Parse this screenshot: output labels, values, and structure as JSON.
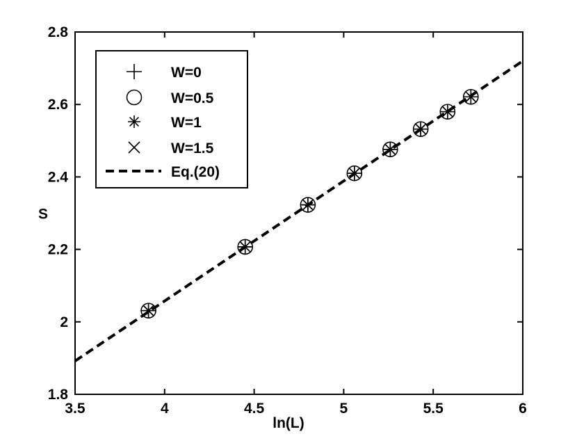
{
  "chart_data": {
    "type": "scatter",
    "title": "",
    "xlabel": "ln(L)",
    "ylabel": "S",
    "xlim": [
      3.5,
      6
    ],
    "ylim": [
      1.8,
      2.8
    ],
    "xticks": [
      "3.5",
      "4",
      "4.5",
      "5",
      "5.5",
      "6"
    ],
    "yticks": [
      "1.8",
      "2",
      "2.2",
      "2.4",
      "2.6",
      "2.8"
    ],
    "grid": false,
    "legend_position": "top-left",
    "series": [
      {
        "name": "W=0",
        "marker": "plus",
        "x": [
          3.91,
          4.45,
          4.8,
          5.06,
          5.26,
          5.43,
          5.58,
          5.71
        ],
        "y": [
          2.031,
          2.207,
          2.323,
          2.41,
          2.476,
          2.532,
          2.58,
          2.621
        ]
      },
      {
        "name": "W=0.5",
        "marker": "circle",
        "x": [
          3.91,
          4.45,
          4.8,
          5.06,
          5.26,
          5.43,
          5.58,
          5.71
        ],
        "y": [
          2.031,
          2.207,
          2.323,
          2.41,
          2.476,
          2.532,
          2.58,
          2.621
        ]
      },
      {
        "name": "W=1",
        "marker": "asterisk",
        "x": [
          3.91,
          4.45,
          4.8,
          5.06,
          5.26,
          5.43,
          5.58,
          5.71
        ],
        "y": [
          2.031,
          2.207,
          2.323,
          2.41,
          2.476,
          2.532,
          2.58,
          2.621
        ]
      },
      {
        "name": "W=1.5",
        "marker": "cross",
        "x": [
          3.91,
          4.45,
          4.8,
          5.06,
          5.26,
          5.43,
          5.58,
          5.71
        ],
        "y": [
          2.031,
          2.207,
          2.323,
          2.41,
          2.476,
          2.532,
          2.58,
          2.621
        ]
      },
      {
        "name": "Eq.(20)",
        "style": "dashed-line",
        "x": [
          3.5,
          6.0
        ],
        "y": [
          1.892,
          2.72
        ]
      }
    ]
  }
}
